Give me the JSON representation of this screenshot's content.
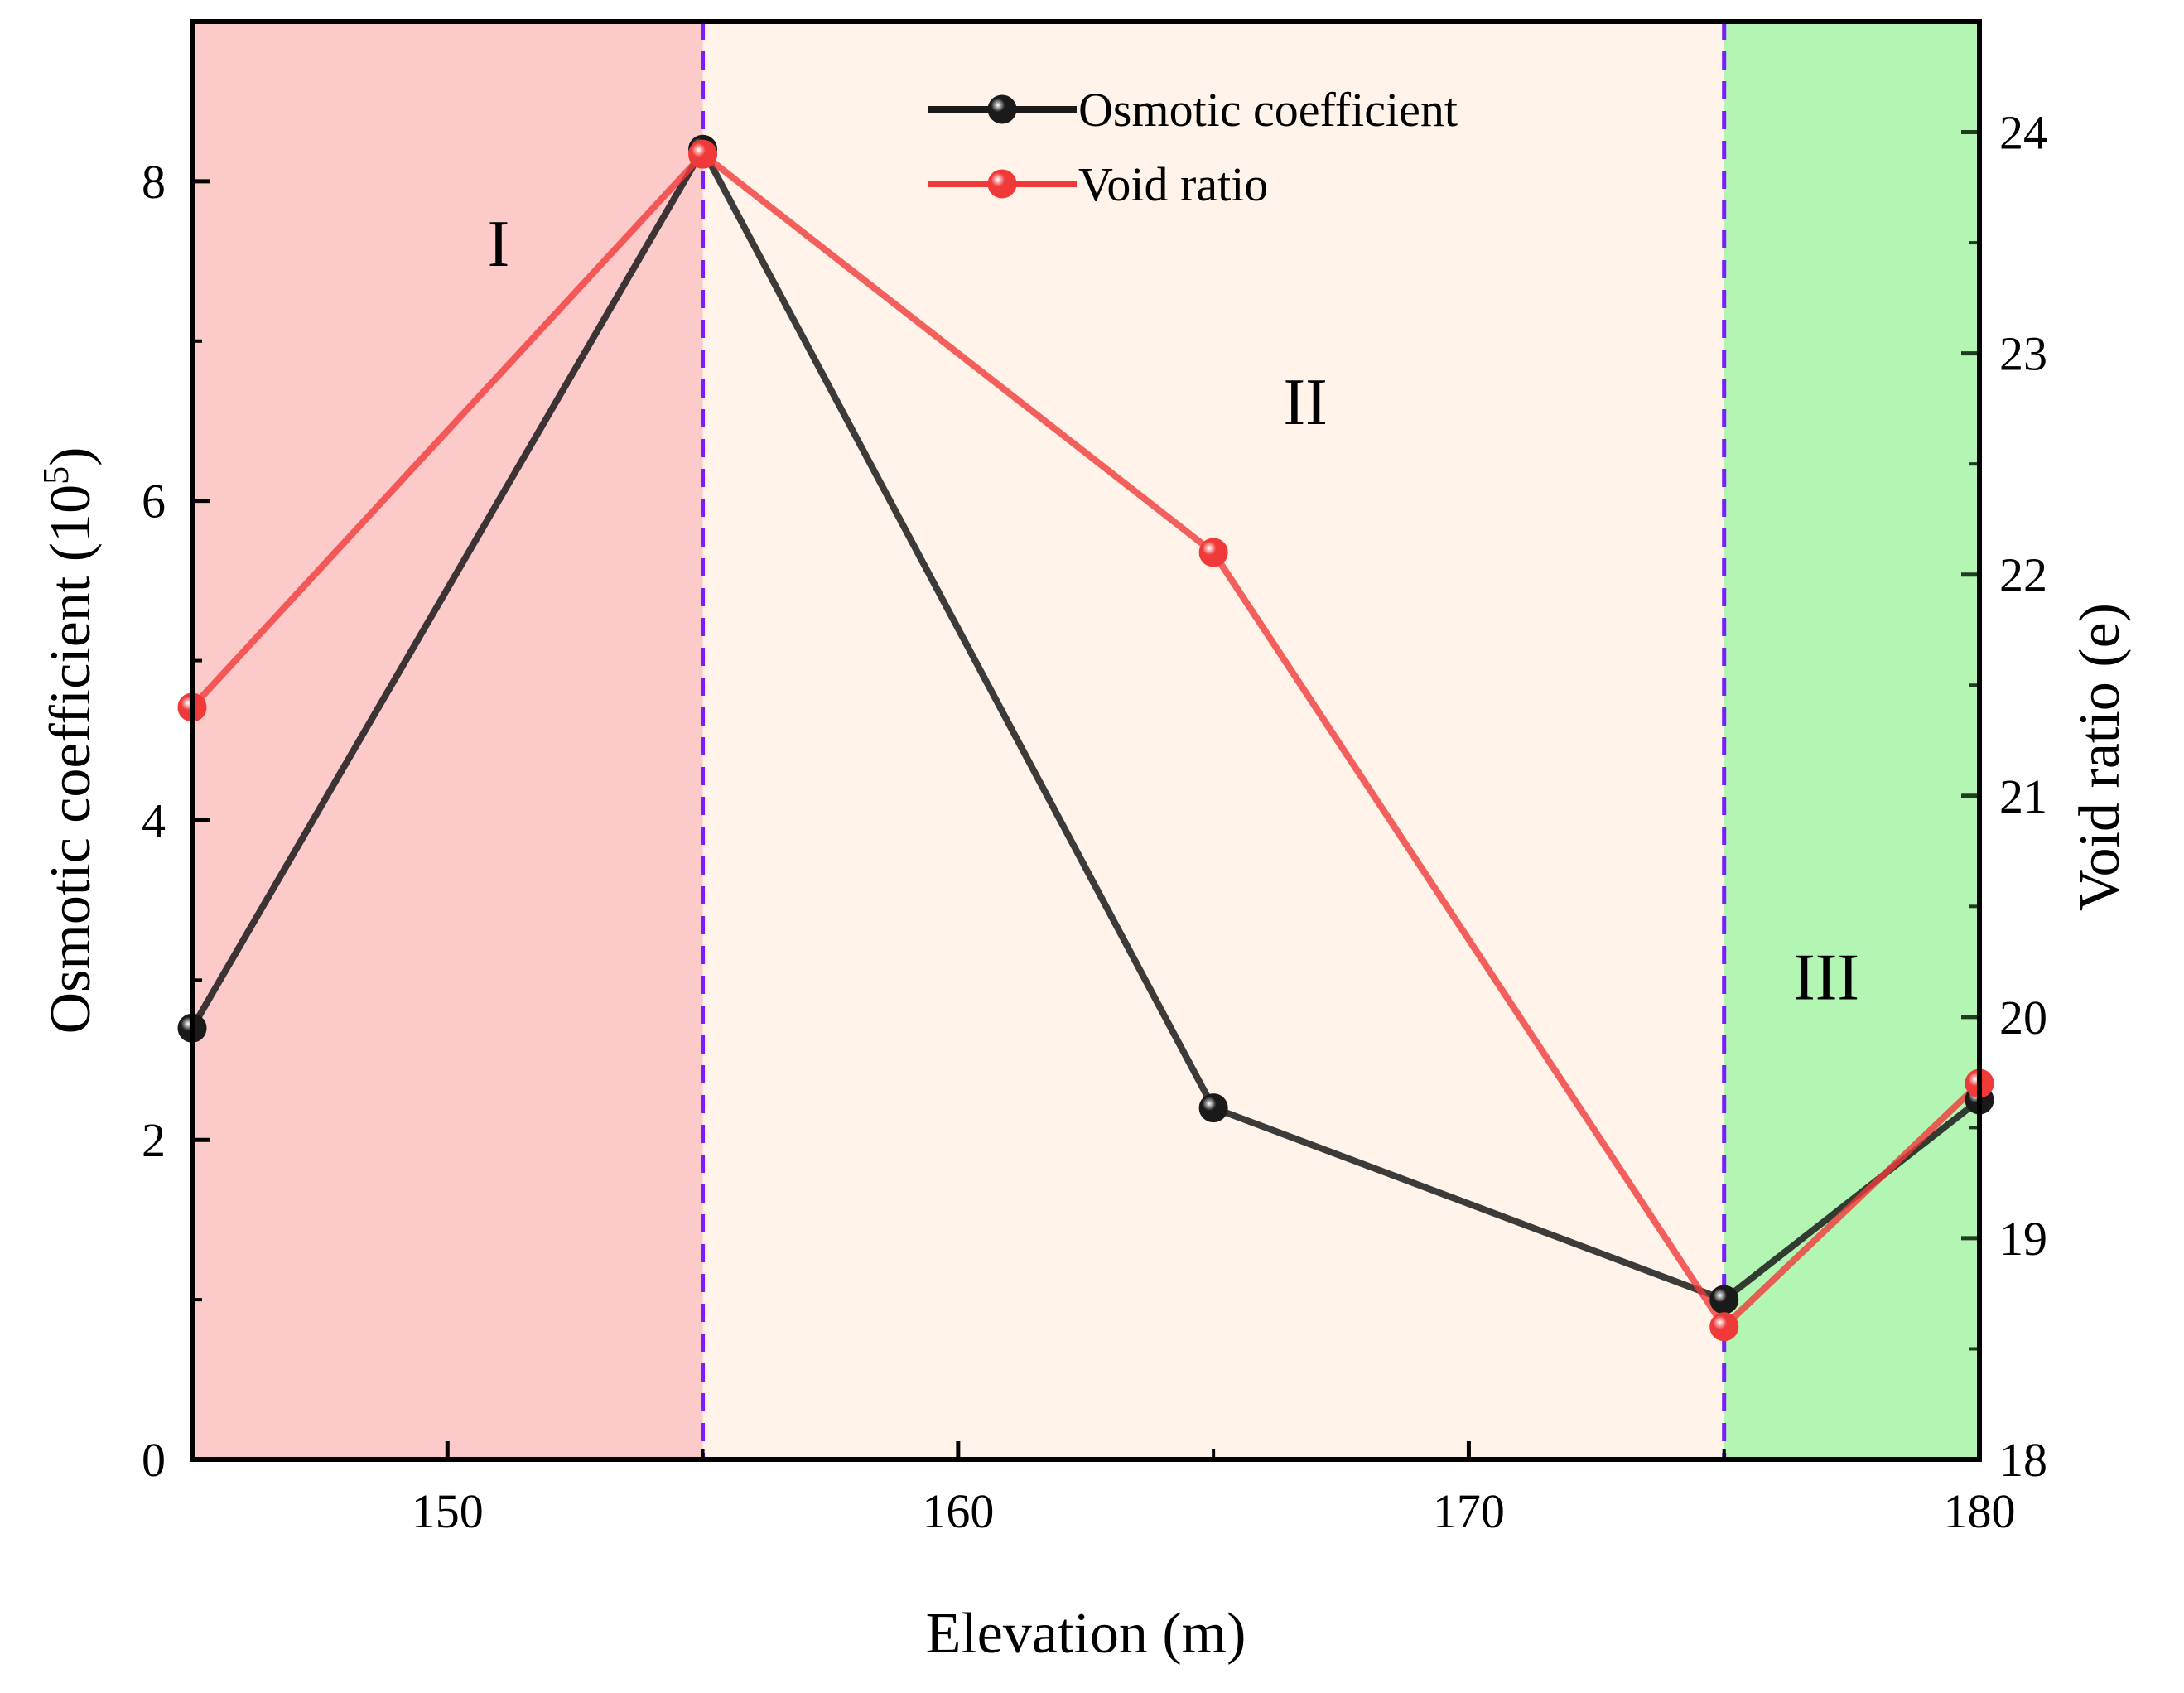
{
  "chart_data": {
    "type": "line",
    "title": "",
    "xlabel": "Elevation (m)",
    "ylabel_left": "Osmotic coefficient (10",
    "ylabel_left_sup": "5",
    "ylabel_left_close": ")",
    "ylabel_right": "Void ratio (e)",
    "xlim": [
      145,
      180
    ],
    "ylim_left": [
      0,
      9
    ],
    "ylim_right": [
      18,
      24.5
    ],
    "x_ticks": [
      150,
      160,
      170,
      180
    ],
    "y_left_ticks": [
      0,
      2,
      4,
      6,
      8
    ],
    "y_right_ticks": [
      18,
      19,
      20,
      21,
      22,
      23,
      24
    ],
    "legend_position": "top-center",
    "regions": [
      {
        "label": "I",
        "x_start": 145,
        "x_end": 155,
        "color": "#fdcaca"
      },
      {
        "label": "II",
        "x_start": 155,
        "x_end": 175,
        "color": "#fff3ea"
      },
      {
        "label": "III",
        "x_start": 175,
        "x_end": 180,
        "color": "#b3f5b2"
      }
    ],
    "boundaries": [
      155,
      175
    ],
    "boundary_color": "#7a1cff",
    "series": [
      {
        "name": "Osmotic coefficient",
        "axis": "left",
        "color": "#1a1a1a",
        "x": [
          145,
          155,
          165,
          175,
          180
        ],
        "values": [
          2.7,
          8.2,
          2.2,
          1.0,
          2.25
        ]
      },
      {
        "name": "Void ratio",
        "axis": "right",
        "color": "#f03a3a",
        "x": [
          145,
          155,
          165,
          175,
          180
        ],
        "values": [
          21.4,
          23.9,
          22.1,
          18.6,
          19.7
        ]
      }
    ]
  }
}
